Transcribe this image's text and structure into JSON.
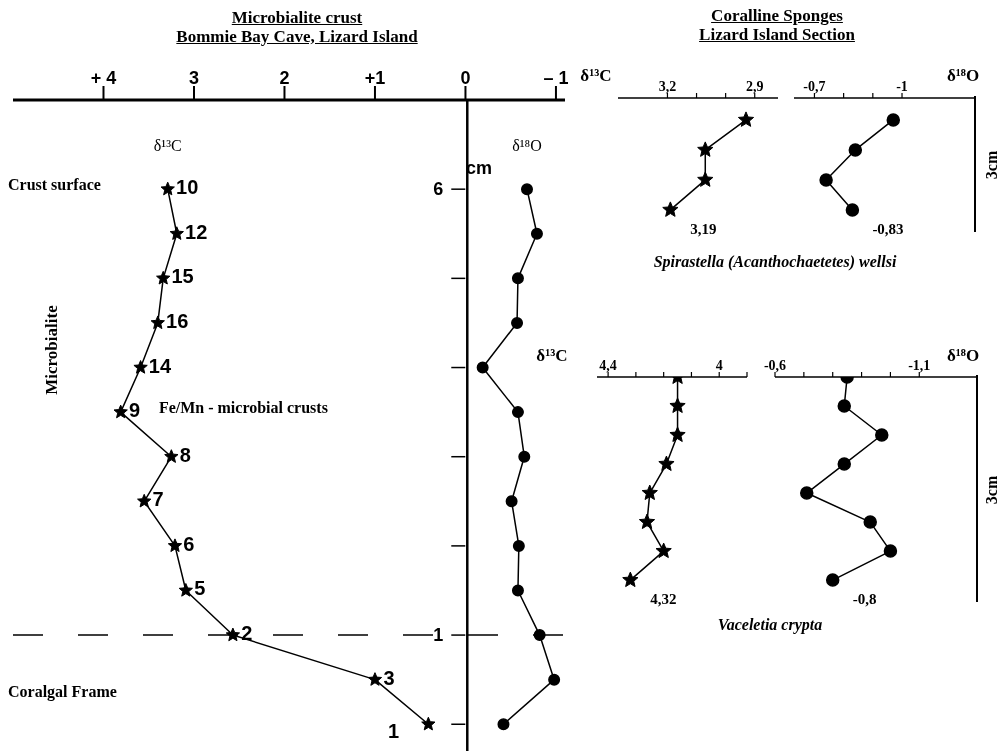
{
  "chart_data": [
    {
      "type": "line",
      "title": "Microbialite crust",
      "subtitle": "Bommie Bay Cave, Lizard Island",
      "ylabel": "Microbialite",
      "xlim": [
        5,
        -1.1
      ],
      "xticks": [
        {
          "value": 4,
          "label": "+ 4"
        },
        3,
        2,
        {
          "value": 1,
          "label": "+1"
        },
        0,
        {
          "value": -1,
          "label": "– 1"
        }
      ],
      "ylim": [
        -0.3,
        7
      ],
      "yticks": [
        {
          "value": 0,
          "label": null
        },
        {
          "value": 1,
          "label": "1"
        },
        {
          "value": 2,
          "label": null
        },
        {
          "value": 3,
          "label": null
        },
        {
          "value": 4,
          "label": null
        },
        {
          "value": 5,
          "label": null
        },
        {
          "value": 6,
          "label": "6"
        }
      ],
      "series": [
        {
          "name": "δ¹³C",
          "color": "#000000",
          "marker": "star",
          "x": [
            3.29,
            3.19,
            3.34,
            3.4,
            3.59,
            3.81,
            3.25,
            3.55,
            3.21,
            3.09,
            2.57,
            1.0,
            0.41
          ],
          "values": [
            6,
            5.5,
            5,
            4.5,
            4,
            3.5,
            3,
            2.5,
            2,
            1.5,
            1,
            0.5,
            0
          ]
        },
        {
          "name": "δ¹⁸O",
          "color": "#000000",
          "marker": "circle",
          "x": [
            -0.68,
            -0.79,
            -0.58,
            -0.57,
            -0.19,
            -0.58,
            -0.65,
            -0.51,
            -0.59,
            -0.58,
            -0.82,
            -0.98,
            -0.42
          ],
          "values": [
            6,
            5.5,
            5,
            4.5,
            4,
            3.5,
            3,
            2.5,
            2,
            1.5,
            1,
            0.5,
            0
          ]
        }
      ],
      "ref_lines": [
        {
          "axis": "y",
          "value": 1,
          "line_style": "dashed"
        }
      ],
      "annotations": [
        "Crust surface",
        "Coralgal Frame",
        "cm",
        {
          "text": "10",
          "x": 3.29,
          "y": 6
        },
        {
          "text": "12",
          "x": 3.19,
          "y": 5.5
        },
        {
          "text": "15",
          "x": 3.34,
          "y": 5
        },
        {
          "text": "16",
          "x": 3.4,
          "y": 4.5
        },
        {
          "text": "14",
          "x": 3.59,
          "y": 4
        },
        {
          "text": "9",
          "x": 3.81,
          "y": 3.5
        },
        {
          "text": "Fe/Mn - microbial crusts",
          "x": 3.81,
          "y": 3.5
        },
        {
          "text": "8",
          "x": 3.25,
          "y": 3
        },
        {
          "text": "7",
          "x": 3.55,
          "y": 2.5
        },
        {
          "text": "6",
          "x": 3.21,
          "y": 2
        },
        {
          "text": "5",
          "x": 3.09,
          "y": 1.5
        },
        {
          "text": "2",
          "x": 2.57,
          "y": 1
        },
        {
          "text": "3",
          "x": 1.0,
          "y": 0.5
        },
        {
          "text": "1",
          "x": 0.41,
          "y": 0
        }
      ]
    },
    {
      "type": "line",
      "orientation": "horizontal",
      "title": "Coralline Sponges",
      "subtitle": "Lizard Island Section",
      "xlabel": "δ¹³C",
      "categories": [
        null,
        null,
        null,
        null
      ],
      "values": [
        2.93,
        3.07,
        3.07,
        3.19
      ],
      "value_labels": [
        null,
        null,
        null,
        "3,19"
      ],
      "color": "#000000",
      "marker": "star",
      "xlim": [
        3.37,
        2.82
      ],
      "xticks": [
        {
          "value": 3.2,
          "label": "3,2"
        },
        {
          "value": 3.1,
          "label": null
        },
        {
          "value": 3.0,
          "label": null
        },
        {
          "value": 2.9,
          "label": "2,9"
        }
      ],
      "tick_labels": "x",
      "annotations": [
        "Spirastella (Acanthochaetetes) wellsi"
      ]
    },
    {
      "type": "line",
      "orientation": "horizontal",
      "xlabel": "δ¹⁸O",
      "categories": [
        null,
        null,
        null,
        null
      ],
      "values": [
        -0.97,
        -0.84,
        -0.74,
        -0.83
      ],
      "value_labels": [
        null,
        null,
        null,
        "-0,83"
      ],
      "color": "#000000",
      "marker": "circle",
      "xlim": [
        -0.63,
        -1.25
      ],
      "xticks": [
        {
          "value": -0.7,
          "label": "-0,7"
        },
        {
          "value": -0.8,
          "label": null
        },
        {
          "value": -0.9,
          "label": null
        },
        {
          "value": -1,
          "label": "-1"
        }
      ],
      "tick_labels": "x",
      "annotations": [
        "3cm"
      ]
    },
    {
      "type": "line",
      "orientation": "horizontal",
      "xlabel": "δ¹³C",
      "categories": [
        null,
        null,
        null,
        null,
        null,
        null,
        null,
        null
      ],
      "values": [
        4.15,
        4.15,
        4.15,
        4.19,
        4.25,
        4.26,
        4.2,
        4.32
      ],
      "value_labels": [
        null,
        null,
        null,
        null,
        null,
        null,
        null,
        "4,32"
      ],
      "color": "#000000",
      "marker": "star",
      "xlim": [
        4.44,
        3.9
      ],
      "xticks": [
        {
          "value": 4.4,
          "label": "4,4"
        },
        {
          "value": 4.3,
          "label": null
        },
        {
          "value": 4.2,
          "label": null
        },
        {
          "value": 4.1,
          "label": null
        },
        {
          "value": 4.0,
          "label": "4"
        },
        {
          "value": 3.9,
          "label": null
        }
      ],
      "tick_labels": "x",
      "annotations": [
        "Vaceletia crypta"
      ]
    },
    {
      "type": "line",
      "orientation": "horizontal",
      "xlabel": "δ¹⁸O",
      "categories": [
        null,
        null,
        null,
        null,
        null,
        null,
        null,
        null
      ],
      "values": [
        -0.85,
        -0.84,
        -0.97,
        -0.84,
        -0.71,
        -0.93,
        -1.0,
        -0.8
      ],
      "value_labels": [
        null,
        null,
        null,
        null,
        null,
        null,
        null,
        "-0,8"
      ],
      "color": "#000000",
      "marker": "circle",
      "xlim": [
        -0.6,
        -1.3
      ],
      "xticks": [
        {
          "value": -0.6,
          "label": "-0,6"
        },
        {
          "value": -0.7,
          "label": null
        },
        {
          "value": -0.8,
          "label": null
        },
        {
          "value": -0.9,
          "label": null
        },
        {
          "value": -1.0,
          "label": null
        },
        {
          "value": -1.1,
          "label": "-1,1"
        }
      ],
      "tick_labels": "x",
      "annotations": [
        "3cm"
      ]
    }
  ]
}
